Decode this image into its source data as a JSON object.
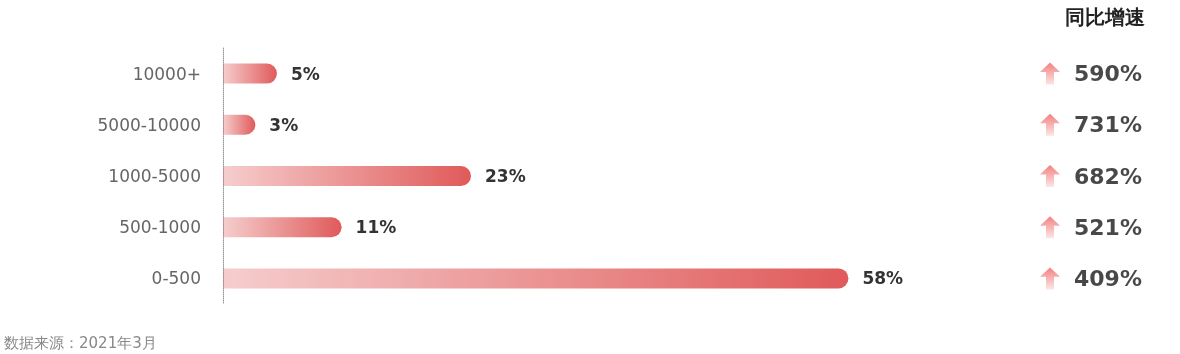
{
  "chart_data": [
    {
      "type": "bar",
      "orientation": "horizontal",
      "categories": [
        "10000+",
        "5000-10000",
        "1000-5000",
        "500-1000",
        "0-500"
      ],
      "values": [
        5,
        3,
        23,
        11,
        58
      ],
      "value_labels": [
        "5%",
        "3%",
        "23%",
        "11%",
        "58%"
      ],
      "color": "#e05a5a",
      "tick_labels": "y",
      "annotations": [
        "数据来源：2021年3月"
      ]
    },
    {
      "type": "other",
      "title": "同比增速",
      "values": [
        590,
        731,
        682,
        521,
        409
      ],
      "value_labels": [
        "590%",
        "731%",
        "682%",
        "521%",
        "409%"
      ],
      "color": "#f06060"
    }
  ]
}
